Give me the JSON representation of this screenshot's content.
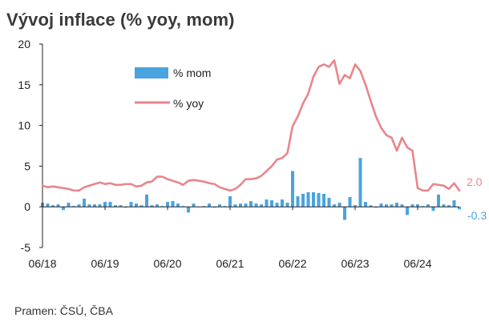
{
  "title": "Vývoj inflace (% yoy, mom)",
  "source": "Pramen: ČSÚ, ČBA",
  "colors": {
    "mom": "#4aa3df",
    "yoy": "#e8868c",
    "axis": "#222222"
  },
  "chart_data": {
    "type": "bar+line",
    "title": "Vývoj inflace (% yoy, mom)",
    "xlabel": "",
    "ylabel": "",
    "ylim": [
      -5,
      20
    ],
    "yticks": [
      20,
      15,
      10,
      5,
      0,
      -5
    ],
    "x_start": "2018-06",
    "xticks": [
      "06/18",
      "06/19",
      "06/20",
      "06/21",
      "06/22",
      "06/23",
      "06/24"
    ],
    "legend": {
      "mom": "% mom",
      "yoy": "% yoy",
      "position": "top-left"
    },
    "series": [
      {
        "name": "% mom",
        "type": "bar",
        "values": [
          0.5,
          0.4,
          0.2,
          0.3,
          -0.4,
          0.5,
          0.1,
          0.3,
          1.0,
          0.3,
          0.3,
          0.3,
          0.6,
          0.6,
          0.2,
          0.2,
          -0.1,
          0.6,
          0.4,
          0.2,
          1.5,
          0.2,
          0.3,
          0.1,
          0.6,
          0.7,
          0.4,
          0.1,
          -0.7,
          0.4,
          0.0,
          0.1,
          0.4,
          -0.1,
          0.3,
          0.1,
          1.3,
          0.3,
          0.4,
          0.4,
          0.7,
          0.4,
          0.3,
          0.9,
          0.8,
          0.5,
          0.9,
          0.5,
          4.4,
          1.3,
          1.6,
          1.8,
          1.8,
          1.7,
          1.6,
          1.1,
          0.3,
          0.5,
          -1.6,
          1.2,
          0.2,
          6.0,
          0.6,
          0.2,
          -0.1,
          0.4,
          0.3,
          0.3,
          0.5,
          0.3,
          -1.0,
          0.3,
          0.3,
          0.1,
          0.3,
          -0.5,
          1.5,
          0.3,
          0.2,
          0.8,
          -0.3
        ],
        "end_label": "-0.3"
      },
      {
        "name": "% yoy",
        "type": "line",
        "values": [
          2.6,
          2.4,
          2.5,
          2.4,
          2.3,
          2.2,
          2.0,
          2.0,
          2.4,
          2.6,
          2.8,
          3.0,
          2.8,
          2.9,
          2.7,
          2.7,
          2.8,
          2.8,
          2.5,
          2.6,
          3.0,
          3.1,
          3.7,
          3.7,
          3.4,
          3.2,
          3.0,
          2.7,
          3.2,
          3.3,
          3.2,
          3.1,
          2.9,
          2.8,
          2.4,
          2.2,
          2.0,
          2.2,
          2.7,
          3.4,
          3.4,
          3.5,
          3.8,
          4.4,
          5.0,
          5.8,
          6.0,
          6.6,
          9.9,
          11.1,
          12.7,
          13.9,
          16.0,
          17.2,
          17.5,
          17.2,
          18.0,
          15.1,
          16.2,
          15.8,
          17.5,
          16.7,
          15.0,
          13.0,
          11.1,
          9.7,
          8.8,
          8.5,
          6.9,
          8.5,
          7.3,
          6.9,
          2.3,
          2.0,
          2.0,
          2.8,
          2.7,
          2.6,
          2.2,
          2.9,
          2.0
        ],
        "end_label": "2.0"
      }
    ]
  }
}
